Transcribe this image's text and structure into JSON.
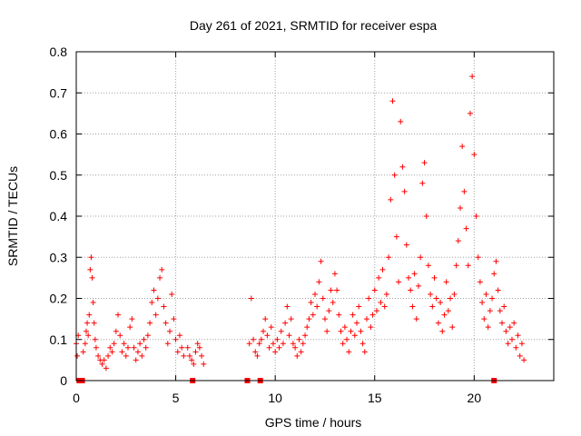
{
  "chart_data": {
    "type": "scatter",
    "title": "Day 261 of 2021, SRMTID for receiver espa",
    "xlabel": "GPS time / hours",
    "ylabel": "SRMTID / TECUs",
    "xlim": [
      0,
      24
    ],
    "ylim": [
      0,
      0.8
    ],
    "xticks": [
      0,
      5,
      10,
      15,
      20
    ],
    "xtick_labels": [
      "0",
      "5",
      "10",
      "15",
      "20"
    ],
    "yticks": [
      0,
      0.1,
      0.2,
      0.3,
      0.4,
      0.5,
      0.6,
      0.7,
      0.8
    ],
    "ytick_labels": [
      "0",
      "0.1",
      "0.2",
      "0.3",
      "0.4",
      "0.5",
      "0.6",
      "0.7",
      "0.8"
    ],
    "grid": true,
    "marker": "+",
    "colors": {
      "series": "#ff0000",
      "grid": "#a0a0a0",
      "axes": "#000000"
    },
    "series": [
      {
        "name": "SRMTID",
        "points": [
          [
            0.0,
            0.09
          ],
          [
            0.05,
            0.06
          ],
          [
            0.1,
            0.11
          ],
          [
            0.35,
            0.07
          ],
          [
            0.45,
            0.09
          ],
          [
            0.5,
            0.12
          ],
          [
            0.55,
            0.14
          ],
          [
            0.6,
            0.11
          ],
          [
            0.65,
            0.16
          ],
          [
            0.7,
            0.27
          ],
          [
            0.75,
            0.3
          ],
          [
            0.8,
            0.25
          ],
          [
            0.85,
            0.19
          ],
          [
            0.9,
            0.14
          ],
          [
            0.95,
            0.1
          ],
          [
            1.0,
            0.08
          ],
          [
            1.1,
            0.06
          ],
          [
            1.2,
            0.05
          ],
          [
            1.3,
            0.04
          ],
          [
            1.4,
            0.05
          ],
          [
            1.5,
            0.03
          ],
          [
            1.6,
            0.06
          ],
          [
            1.7,
            0.08
          ],
          [
            1.8,
            0.07
          ],
          [
            1.9,
            0.09
          ],
          [
            2.0,
            0.12
          ],
          [
            2.1,
            0.16
          ],
          [
            2.2,
            0.11
          ],
          [
            2.3,
            0.07
          ],
          [
            2.4,
            0.09
          ],
          [
            2.5,
            0.06
          ],
          [
            2.6,
            0.08
          ],
          [
            2.7,
            0.13
          ],
          [
            2.8,
            0.15
          ],
          [
            2.9,
            0.08
          ],
          [
            3.0,
            0.05
          ],
          [
            3.1,
            0.07
          ],
          [
            3.2,
            0.09
          ],
          [
            3.3,
            0.06
          ],
          [
            3.4,
            0.1
          ],
          [
            3.5,
            0.08
          ],
          [
            3.6,
            0.11
          ],
          [
            3.7,
            0.14
          ],
          [
            3.8,
            0.19
          ],
          [
            3.9,
            0.22
          ],
          [
            4.0,
            0.16
          ],
          [
            4.1,
            0.2
          ],
          [
            4.2,
            0.25
          ],
          [
            4.3,
            0.27
          ],
          [
            4.4,
            0.18
          ],
          [
            4.5,
            0.14
          ],
          [
            4.6,
            0.09
          ],
          [
            4.7,
            0.12
          ],
          [
            4.8,
            0.21
          ],
          [
            4.9,
            0.15
          ],
          [
            5.0,
            0.1
          ],
          [
            5.1,
            0.07
          ],
          [
            5.2,
            0.11
          ],
          [
            5.3,
            0.08
          ],
          [
            5.4,
            0.06
          ],
          [
            5.6,
            0.08
          ],
          [
            5.7,
            0.06
          ],
          [
            5.8,
            0.05
          ],
          [
            5.9,
            0.04
          ],
          [
            6.0,
            0.07
          ],
          [
            6.1,
            0.09
          ],
          [
            6.2,
            0.08
          ],
          [
            6.3,
            0.06
          ],
          [
            6.4,
            0.04
          ],
          [
            8.7,
            0.09
          ],
          [
            8.8,
            0.2
          ],
          [
            8.9,
            0.1
          ],
          [
            9.0,
            0.07
          ],
          [
            9.1,
            0.06
          ],
          [
            9.2,
            0.09
          ],
          [
            9.3,
            0.1
          ],
          [
            9.4,
            0.12
          ],
          [
            9.5,
            0.15
          ],
          [
            9.6,
            0.11
          ],
          [
            9.7,
            0.08
          ],
          [
            9.8,
            0.13
          ],
          [
            9.9,
            0.09
          ],
          [
            10.0,
            0.07
          ],
          [
            10.1,
            0.1
          ],
          [
            10.2,
            0.08
          ],
          [
            10.3,
            0.12
          ],
          [
            10.4,
            0.09
          ],
          [
            10.5,
            0.14
          ],
          [
            10.6,
            0.18
          ],
          [
            10.7,
            0.11
          ],
          [
            10.8,
            0.15
          ],
          [
            10.9,
            0.09
          ],
          [
            11.0,
            0.08
          ],
          [
            11.1,
            0.06
          ],
          [
            11.2,
            0.1
          ],
          [
            11.3,
            0.07
          ],
          [
            11.4,
            0.09
          ],
          [
            11.5,
            0.11
          ],
          [
            11.6,
            0.13
          ],
          [
            11.7,
            0.15
          ],
          [
            11.8,
            0.19
          ],
          [
            11.9,
            0.16
          ],
          [
            12.0,
            0.21
          ],
          [
            12.1,
            0.18
          ],
          [
            12.2,
            0.24
          ],
          [
            12.3,
            0.29
          ],
          [
            12.4,
            0.2
          ],
          [
            12.5,
            0.15
          ],
          [
            12.6,
            0.12
          ],
          [
            12.7,
            0.17
          ],
          [
            12.8,
            0.22
          ],
          [
            12.9,
            0.19
          ],
          [
            13.0,
            0.26
          ],
          [
            13.1,
            0.22
          ],
          [
            13.2,
            0.16
          ],
          [
            13.3,
            0.12
          ],
          [
            13.4,
            0.09
          ],
          [
            13.5,
            0.13
          ],
          [
            13.6,
            0.1
          ],
          [
            13.7,
            0.07
          ],
          [
            13.8,
            0.12
          ],
          [
            13.9,
            0.16
          ],
          [
            14.0,
            0.11
          ],
          [
            14.1,
            0.14
          ],
          [
            14.2,
            0.18
          ],
          [
            14.3,
            0.12
          ],
          [
            14.4,
            0.09
          ],
          [
            14.5,
            0.07
          ],
          [
            14.6,
            0.15
          ],
          [
            14.7,
            0.2
          ],
          [
            14.8,
            0.13
          ],
          [
            14.9,
            0.16
          ],
          [
            15.0,
            0.22
          ],
          [
            15.1,
            0.17
          ],
          [
            15.2,
            0.25
          ],
          [
            15.3,
            0.19
          ],
          [
            15.4,
            0.27
          ],
          [
            15.5,
            0.18
          ],
          [
            15.6,
            0.21
          ],
          [
            15.7,
            0.3
          ],
          [
            15.8,
            0.44
          ],
          [
            15.9,
            0.68
          ],
          [
            16.0,
            0.5
          ],
          [
            16.1,
            0.35
          ],
          [
            16.2,
            0.24
          ],
          [
            16.3,
            0.63
          ],
          [
            16.4,
            0.52
          ],
          [
            16.5,
            0.46
          ],
          [
            16.6,
            0.33
          ],
          [
            16.7,
            0.25
          ],
          [
            16.8,
            0.22
          ],
          [
            16.9,
            0.18
          ],
          [
            17.0,
            0.26
          ],
          [
            17.1,
            0.15
          ],
          [
            17.2,
            0.23
          ],
          [
            17.3,
            0.3
          ],
          [
            17.4,
            0.48
          ],
          [
            17.5,
            0.53
          ],
          [
            17.6,
            0.4
          ],
          [
            17.7,
            0.28
          ],
          [
            17.8,
            0.21
          ],
          [
            17.9,
            0.18
          ],
          [
            18.0,
            0.25
          ],
          [
            18.1,
            0.2
          ],
          [
            18.2,
            0.14
          ],
          [
            18.3,
            0.19
          ],
          [
            18.4,
            0.12
          ],
          [
            18.5,
            0.16
          ],
          [
            18.6,
            0.24
          ],
          [
            18.7,
            0.17
          ],
          [
            18.8,
            0.2
          ],
          [
            18.9,
            0.13
          ],
          [
            19.0,
            0.21
          ],
          [
            19.1,
            0.28
          ],
          [
            19.2,
            0.34
          ],
          [
            19.3,
            0.42
          ],
          [
            19.4,
            0.57
          ],
          [
            19.5,
            0.46
          ],
          [
            19.6,
            0.37
          ],
          [
            19.7,
            0.28
          ],
          [
            19.8,
            0.65
          ],
          [
            19.9,
            0.74
          ],
          [
            20.0,
            0.55
          ],
          [
            20.1,
            0.4
          ],
          [
            20.2,
            0.3
          ],
          [
            20.3,
            0.24
          ],
          [
            20.4,
            0.19
          ],
          [
            20.5,
            0.15
          ],
          [
            20.6,
            0.21
          ],
          [
            20.7,
            0.13
          ],
          [
            20.8,
            0.17
          ],
          [
            20.9,
            0.2
          ],
          [
            21.0,
            0.26
          ],
          [
            21.1,
            0.29
          ],
          [
            21.2,
            0.22
          ],
          [
            21.3,
            0.17
          ],
          [
            21.4,
            0.14
          ],
          [
            21.5,
            0.18
          ],
          [
            21.6,
            0.12
          ],
          [
            21.7,
            0.09
          ],
          [
            21.8,
            0.13
          ],
          [
            21.9,
            0.1
          ],
          [
            22.0,
            0.14
          ],
          [
            22.1,
            0.08
          ],
          [
            22.2,
            0.11
          ],
          [
            22.3,
            0.06
          ],
          [
            22.4,
            0.09
          ],
          [
            22.5,
            0.05
          ]
        ]
      }
    ],
    "gap_markers": {
      "name": "data gaps",
      "x": [
        0.15,
        0.3,
        5.85,
        8.6,
        9.25,
        21.0
      ],
      "y": 0
    }
  }
}
